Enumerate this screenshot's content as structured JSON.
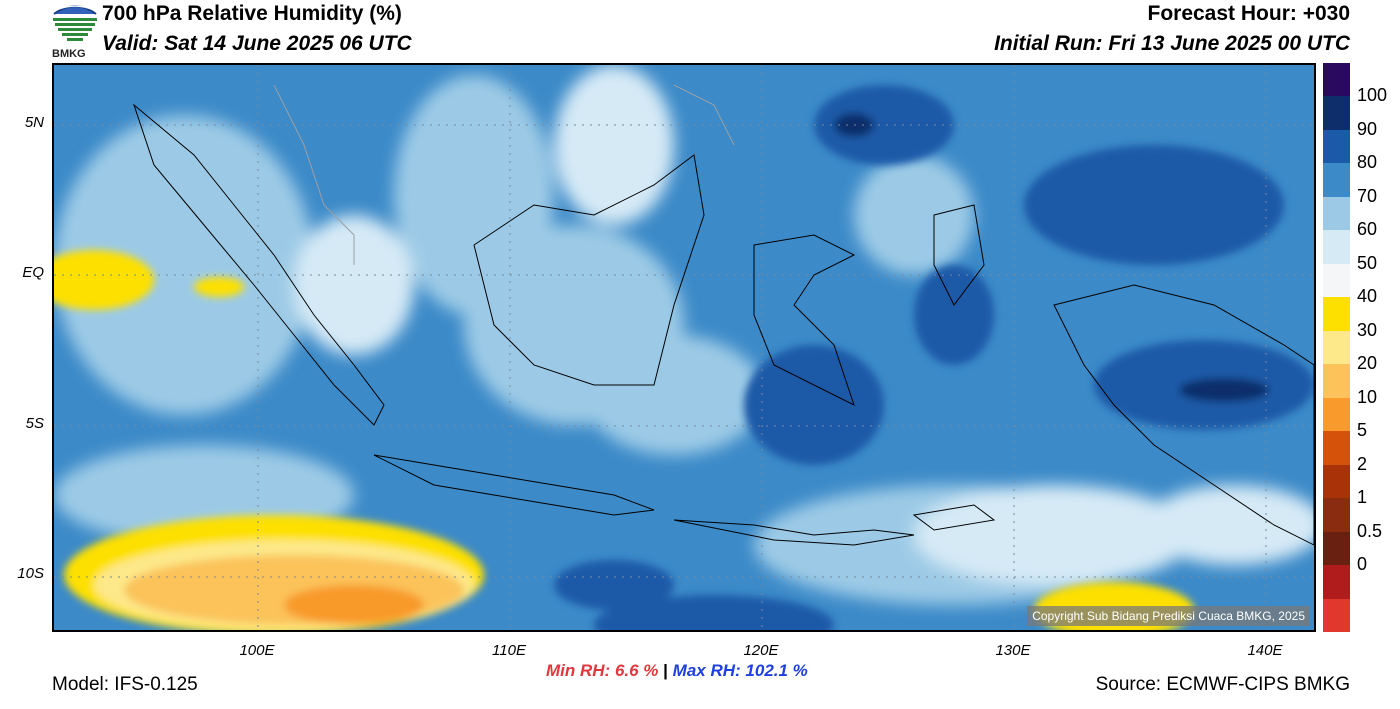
{
  "header": {
    "title": "700 hPa Relative Humidity (%)",
    "valid": "Valid: Sat 14 June 2025 06 UTC",
    "forecast_hour": "Forecast Hour: +030",
    "initial_run": "Initial Run: Fri 13 June 2025 00 UTC"
  },
  "logo": {
    "text": "BMKG"
  },
  "map": {
    "lat_labels": [
      "5N",
      "EQ",
      "5S",
      "10S"
    ],
    "lon_labels": [
      "100E",
      "110E",
      "120E",
      "130E",
      "140E"
    ],
    "copyright": "Copyright Sub Bidang Prediksi Cuaca BMKG, 2025"
  },
  "colorbar": {
    "labels": [
      "100",
      "90",
      "80",
      "70",
      "60",
      "50",
      "40",
      "30",
      "20",
      "10",
      "5",
      "2",
      "1",
      "0.5",
      "0"
    ],
    "colors": [
      "#2a0a5e",
      "#0d2e6b",
      "#1a5aa8",
      "#3c8ac8",
      "#9ccae6",
      "#d6eaf6",
      "#f4f6f8",
      "#fde000",
      "#fde88a",
      "#fbc35a",
      "#f89a2c",
      "#d4520a",
      "#aa3208",
      "#8a2c10",
      "#6a2010",
      "#b01c1c",
      "#e0382c"
    ]
  },
  "stats": {
    "min_label": "Min RH:",
    "min_value": "6.6 %",
    "separator": "|",
    "max_label": "Max RH:",
    "max_value": "102.1 %"
  },
  "footer": {
    "model": "Model: IFS-0.125",
    "source": "Source: ECMWF-CIPS BMKG"
  }
}
